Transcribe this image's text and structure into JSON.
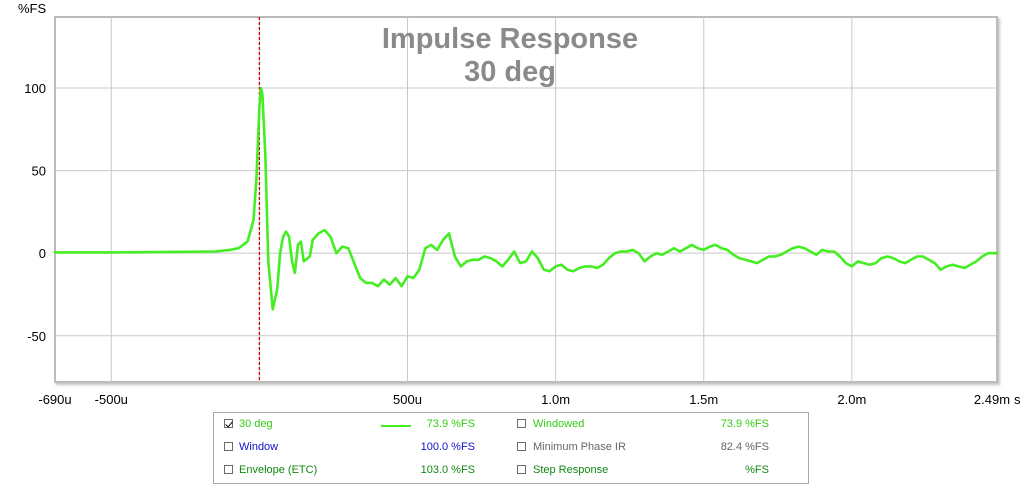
{
  "chart_data": {
    "type": "line",
    "title": "Impulse Response",
    "subtitle": "30 deg",
    "ylabel": "%FS",
    "xunit": "s",
    "xlim": [
      -0.00069,
      0.00249
    ],
    "ylim": [
      -78,
      143
    ],
    "yticks": [
      100,
      50,
      0,
      -50
    ],
    "xticks": [
      {
        "value": -0.00069,
        "label": "-690u"
      },
      {
        "value": -0.0005,
        "label": "-500u"
      },
      {
        "value": 0.0005,
        "label": "500u"
      },
      {
        "value": 0.001,
        "label": "1.0m"
      },
      {
        "value": 0.0015,
        "label": "1.5m"
      },
      {
        "value": 0.002,
        "label": "2.0m"
      },
      {
        "value": 0.00249,
        "label": "2.49m"
      }
    ],
    "grid_x": [
      -0.0005,
      0.0,
      0.0005,
      0.001,
      0.0015,
      0.002
    ],
    "grid_y": [
      100,
      50,
      0,
      -50
    ],
    "marker_x": 0.0,
    "line_color": "#44ee22",
    "marker_color": "#dd0000",
    "series": [
      {
        "name": "30 deg",
        "points": [
          [
            -0.00069,
            0.5
          ],
          [
            -0.0005,
            0.5
          ],
          [
            -0.0003,
            0.8
          ],
          [
            -0.00015,
            1
          ],
          [
            -0.0001,
            2
          ],
          [
            -7e-05,
            3
          ],
          [
            -4e-05,
            7
          ],
          [
            -2e-05,
            20
          ],
          [
            -1e-05,
            45
          ],
          [
            0.0,
            88
          ],
          [
            5e-06,
            100
          ],
          [
            1e-05,
            96
          ],
          [
            2e-05,
            60
          ],
          [
            3e-05,
            -5
          ],
          [
            4.5e-05,
            -34
          ],
          [
            6e-05,
            -22
          ],
          [
            7e-05,
            0
          ],
          [
            8e-05,
            10
          ],
          [
            9e-05,
            13
          ],
          [
            0.0001,
            10
          ],
          [
            0.00011,
            -5
          ],
          [
            0.00012,
            -12
          ],
          [
            0.00013,
            5
          ],
          [
            0.00014,
            7
          ],
          [
            0.00015,
            -5
          ],
          [
            0.00017,
            -2
          ],
          [
            0.00018,
            8
          ],
          [
            0.0002,
            12
          ],
          [
            0.00022,
            14
          ],
          [
            0.00024,
            10
          ],
          [
            0.00026,
            0
          ],
          [
            0.00028,
            4
          ],
          [
            0.0003,
            3
          ],
          [
            0.00032,
            -6
          ],
          [
            0.00034,
            -15
          ],
          [
            0.00036,
            -18
          ],
          [
            0.00038,
            -18
          ],
          [
            0.0004,
            -20
          ],
          [
            0.00042,
            -16
          ],
          [
            0.00044,
            -19
          ],
          [
            0.00046,
            -15
          ],
          [
            0.00048,
            -20
          ],
          [
            0.0005,
            -14
          ],
          [
            0.00052,
            -15
          ],
          [
            0.00054,
            -10
          ],
          [
            0.00056,
            3
          ],
          [
            0.00058,
            5
          ],
          [
            0.0006,
            2
          ],
          [
            0.00062,
            8
          ],
          [
            0.00064,
            12
          ],
          [
            0.00066,
            -2
          ],
          [
            0.00068,
            -8
          ],
          [
            0.0007,
            -5
          ],
          [
            0.00072,
            -4
          ],
          [
            0.00074,
            -4
          ],
          [
            0.00076,
            -2
          ],
          [
            0.00078,
            -3
          ],
          [
            0.0008,
            -5
          ],
          [
            0.00082,
            -8
          ],
          [
            0.00084,
            -4
          ],
          [
            0.00086,
            1
          ],
          [
            0.00088,
            -6
          ],
          [
            0.0009,
            -5
          ],
          [
            0.00092,
            1
          ],
          [
            0.00094,
            -3
          ],
          [
            0.00096,
            -10
          ],
          [
            0.00098,
            -11
          ],
          [
            0.001,
            -8
          ],
          [
            0.00102,
            -7
          ],
          [
            0.00104,
            -10
          ],
          [
            0.00106,
            -11
          ],
          [
            0.00108,
            -9
          ],
          [
            0.0011,
            -8
          ],
          [
            0.00112,
            -8
          ],
          [
            0.00114,
            -9
          ],
          [
            0.00116,
            -7
          ],
          [
            0.00118,
            -3
          ],
          [
            0.0012,
            0
          ],
          [
            0.00122,
            1
          ],
          [
            0.00124,
            1
          ],
          [
            0.00126,
            2
          ],
          [
            0.00128,
            0
          ],
          [
            0.0013,
            -5
          ],
          [
            0.00132,
            -2
          ],
          [
            0.00134,
            0
          ],
          [
            0.00136,
            -1
          ],
          [
            0.00138,
            1
          ],
          [
            0.0014,
            3
          ],
          [
            0.00142,
            1
          ],
          [
            0.00144,
            3
          ],
          [
            0.00146,
            5
          ],
          [
            0.00148,
            3
          ],
          [
            0.0015,
            2
          ],
          [
            0.00152,
            4
          ],
          [
            0.00154,
            5
          ],
          [
            0.00156,
            3
          ],
          [
            0.00158,
            2
          ],
          [
            0.0016,
            -1
          ],
          [
            0.00162,
            -3
          ],
          [
            0.00164,
            -4
          ],
          [
            0.00166,
            -5
          ],
          [
            0.00168,
            -6
          ],
          [
            0.0017,
            -4
          ],
          [
            0.00172,
            -2
          ],
          [
            0.00174,
            -2
          ],
          [
            0.00176,
            -1
          ],
          [
            0.00178,
            1
          ],
          [
            0.0018,
            3
          ],
          [
            0.00182,
            4
          ],
          [
            0.00184,
            3
          ],
          [
            0.00186,
            1
          ],
          [
            0.00188,
            -1
          ],
          [
            0.0019,
            2
          ],
          [
            0.00192,
            1
          ],
          [
            0.00194,
            1
          ],
          [
            0.00196,
            -2
          ],
          [
            0.00198,
            -6
          ],
          [
            0.002,
            -8
          ],
          [
            0.00202,
            -5
          ],
          [
            0.00204,
            -6
          ],
          [
            0.00206,
            -7
          ],
          [
            0.00208,
            -6
          ],
          [
            0.0021,
            -3
          ],
          [
            0.00212,
            -2
          ],
          [
            0.00214,
            -3
          ],
          [
            0.00216,
            -5
          ],
          [
            0.00218,
            -6
          ],
          [
            0.0022,
            -4
          ],
          [
            0.00222,
            -2
          ],
          [
            0.00224,
            -2
          ],
          [
            0.00226,
            -4
          ],
          [
            0.00228,
            -6
          ],
          [
            0.0023,
            -10
          ],
          [
            0.00232,
            -8
          ],
          [
            0.00234,
            -7
          ],
          [
            0.00236,
            -8
          ],
          [
            0.00238,
            -9
          ],
          [
            0.0024,
            -7
          ],
          [
            0.00242,
            -5
          ],
          [
            0.00244,
            -2
          ],
          [
            0.00246,
            0
          ],
          [
            0.00249,
            0
          ]
        ]
      }
    ],
    "legend_placement": "bottom",
    "legend": [
      {
        "label": "30 deg",
        "value": "73.9 %FS",
        "checked": true,
        "label_color": "#33cc11",
        "value_color": "#33cc11",
        "swatch_color": "#44ee22"
      },
      {
        "label": "Windowed",
        "value": "73.9 %FS",
        "checked": false,
        "label_color": "#33cc11",
        "value_color": "#33cc11"
      },
      {
        "label": "Window",
        "value": "100.0 %FS",
        "checked": false,
        "label_color": "#1111cc",
        "value_color": "#1111cc"
      },
      {
        "label": "Minimum Phase IR",
        "value": "82.4 %FS",
        "checked": false,
        "label_color": "#666666",
        "value_color": "#666666"
      },
      {
        "label": "Envelope (ETC)",
        "value": "103.0 %FS",
        "checked": false,
        "label_color": "#118811",
        "value_color": "#118811"
      },
      {
        "label": "Step Response",
        "value": "%FS",
        "checked": false,
        "label_color": "#118811",
        "value_color": "#118811"
      }
    ]
  }
}
